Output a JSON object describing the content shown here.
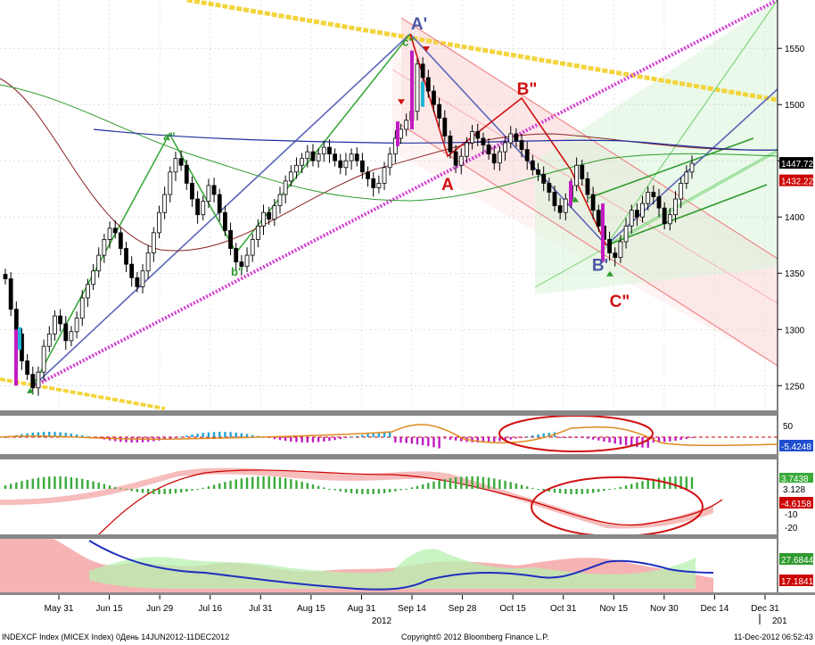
{
  "chart_data": {
    "type": "candlestick",
    "instrument": "INDEXCF Index (MICEX Index) 0День 14JUN2012-11DEC2012",
    "copyright": "Copyright© 2012 Bloomberg Finance L.P.",
    "timestamp": "11-Dec-2012 06:52:43",
    "x_ticks": [
      "May 31",
      "Jun 15",
      "Jun 29",
      "Jul 16",
      "Jul 31",
      "Aug 15",
      "Aug 31",
      "Sep 14",
      "Sep 28",
      "Oct 15",
      "Oct 31",
      "Nov 15",
      "Nov 30",
      "Dec 14",
      "Dec 31"
    ],
    "year_labels": [
      "2012",
      "201"
    ],
    "y_ticks": [
      1250,
      1300,
      1350,
      1400,
      1450,
      1500,
      1550
    ],
    "ylim": [
      1228,
      1593
    ],
    "price_tags": [
      {
        "text": "1447.72",
        "value": 1447.72,
        "color": "#ffffff",
        "bg": "#000000"
      },
      {
        "text": "1432.22",
        "value": 1432.22,
        "color": "#ffffff",
        "bg": "#cc0000"
      }
    ],
    "closes": [
      1345,
      1318,
      1296,
      1272,
      1260,
      1248,
      1262,
      1285,
      1296,
      1312,
      1305,
      1290,
      1298,
      1310,
      1328,
      1340,
      1352,
      1366,
      1380,
      1390,
      1386,
      1372,
      1358,
      1346,
      1338,
      1352,
      1368,
      1386,
      1404,
      1420,
      1440,
      1452,
      1446,
      1430,
      1416,
      1402,
      1414,
      1428,
      1420,
      1404,
      1388,
      1372,
      1360,
      1356,
      1366,
      1380,
      1392,
      1404,
      1398,
      1410,
      1420,
      1432,
      1440,
      1446,
      1452,
      1458,
      1450,
      1456,
      1462,
      1456,
      1450,
      1444,
      1450,
      1456,
      1450,
      1440,
      1434,
      1426,
      1430,
      1444,
      1456,
      1470,
      1478,
      1486,
      1494,
      1536,
      1524,
      1512,
      1500,
      1488,
      1472,
      1458,
      1446,
      1454,
      1466,
      1476,
      1470,
      1464,
      1456,
      1448,
      1458,
      1466,
      1474,
      1468,
      1460,
      1450,
      1442,
      1438,
      1430,
      1422,
      1410,
      1404,
      1416,
      1428,
      1446,
      1434,
      1420,
      1406,
      1392,
      1380,
      1368,
      1364,
      1378,
      1392,
      1406,
      1400,
      1412,
      1422,
      1418,
      1408,
      1394,
      1402,
      1416,
      1430,
      1440,
      1447.72
    ],
    "labels": [
      {
        "text": "A'",
        "value": 1567,
        "color": "#4a56a6",
        "size": "big"
      },
      {
        "text": "c\"",
        "value": 1552,
        "color": "#2e9a2e",
        "size": "small"
      },
      {
        "text": "a\"",
        "value": 1468,
        "color": "#2e9a2e",
        "size": "small"
      },
      {
        "text": "b\"",
        "value": 1348,
        "color": "#2e9a2e",
        "size": "small"
      },
      {
        "text": "B\"",
        "value": 1509,
        "color": "#d01010",
        "size": "big"
      },
      {
        "text": "A",
        "value": 1424,
        "color": "#d01010",
        "size": "big"
      },
      {
        "text": "B'",
        "value": 1352,
        "color": "#4a56a6",
        "size": "big"
      },
      {
        "text": "C\"",
        "value": 1320,
        "color": "#d01010",
        "size": "big"
      }
    ],
    "oscillator1": {
      "ticks": [
        50
      ],
      "tag_text": "-5.4248",
      "tag_color": "#1f4fcf"
    },
    "oscillator2": {
      "ticks": [
        3.128,
        -10,
        -20
      ],
      "tag_text": "-4.6158",
      "tag_small": "3.128",
      "tag_color": "#cc0000",
      "green_tag": "3.7438"
    },
    "oscillator3": {
      "tags": [
        {
          "text": "27.6844",
          "color": "#2e9a2e"
        },
        {
          "text": "17.1841",
          "color": "#cc0000"
        }
      ]
    }
  }
}
